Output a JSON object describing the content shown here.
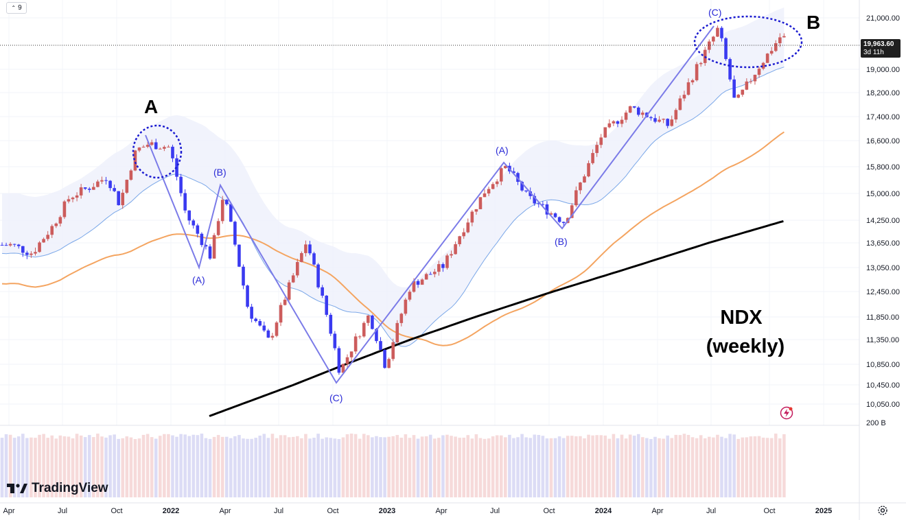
{
  "toolbar": {
    "interval": "9"
  },
  "price_axis": {
    "labels": [
      "21,000.00",
      "19,000.00",
      "18,200.00",
      "17,400.00",
      "16,600.00",
      "15,800.00",
      "15,000.00",
      "14,250.00",
      "13,650.00",
      "13,050.00",
      "12,450.00",
      "11,850.00",
      "11,350.00",
      "10,850.00",
      "10,450.00",
      "10,050.00"
    ],
    "volume_label": "200 B"
  },
  "last_price": {
    "value": "19,963.60",
    "countdown": "3d 11h"
  },
  "time_axis": {
    "labels": [
      "Apr",
      "Jul",
      "Oct",
      "2022",
      "Apr",
      "Jul",
      "Oct",
      "2023",
      "Apr",
      "Jul",
      "Oct",
      "2024",
      "Apr",
      "Jul",
      "Oct",
      "2025"
    ]
  },
  "annotations": {
    "marker_a": "A",
    "marker_b": "B",
    "title_line1": "NDX",
    "title_line2": "(weekly)",
    "wave_labels": [
      "(A)",
      "(B)",
      "(C)",
      "(A)",
      "(B)",
      "(C)"
    ]
  },
  "branding": {
    "logo_text": "TradingView"
  },
  "colors": {
    "up_candle": "#cc5c5c",
    "down_candle": "#3a3af0",
    "ma_orange": "#f4a460",
    "ma_blue": "#7aa7e8",
    "ma_black": "#000000",
    "wave_line": "#7b7be8",
    "ellipse": "#1a1ad0"
  },
  "chart_data": {
    "type": "candlestick",
    "title": "",
    "x_range": [
      "2021-04",
      "2024-11"
    ],
    "y_range": [
      9800,
      21300
    ],
    "series": [
      {
        "name": "",
        "kind": "weekly_close_approx",
        "points": [
          [
            "2021-04-05",
            13600
          ],
          [
            "2021-05-10",
            13400
          ],
          [
            "2021-06-14",
            14100
          ],
          [
            "2021-07-12",
            14900
          ],
          [
            "2021-08-16",
            15200
          ],
          [
            "2021-09-13",
            15500
          ],
          [
            "2021-10-04",
            14700
          ],
          [
            "2021-11-01",
            16300
          ],
          [
            "2021-11-22",
            16500
          ],
          [
            "2021-12-27",
            16400
          ],
          [
            "2022-01-24",
            14400
          ],
          [
            "2022-03-07",
            13300
          ],
          [
            "2022-03-28",
            15000
          ],
          [
            "2022-05-09",
            12000
          ],
          [
            "2022-06-13",
            11300
          ],
          [
            "2022-08-15",
            13700
          ],
          [
            "2022-10-10",
            10700
          ],
          [
            "2022-11-28",
            11900
          ],
          [
            "2022-12-26",
            10800
          ],
          [
            "2023-02-06",
            12600
          ],
          [
            "2023-04-03",
            13100
          ],
          [
            "2023-06-12",
            15100
          ],
          [
            "2023-07-17",
            15800
          ],
          [
            "2023-08-21",
            14900
          ],
          [
            "2023-10-23",
            14200
          ],
          [
            "2023-12-25",
            16800
          ],
          [
            "2024-02-12",
            17700
          ],
          [
            "2024-04-15",
            17100
          ],
          [
            "2024-07-08",
            20600
          ],
          [
            "2024-08-05",
            17800
          ],
          [
            "2024-10-21",
            20300
          ],
          [
            "2024-11-11",
            19964
          ]
        ]
      },
      {
        "name": "",
        "kind": "moving_average"
      },
      {
        "name": "",
        "kind": "moving_average"
      },
      {
        "name": "",
        "kind": "moving_average"
      }
    ]
  }
}
